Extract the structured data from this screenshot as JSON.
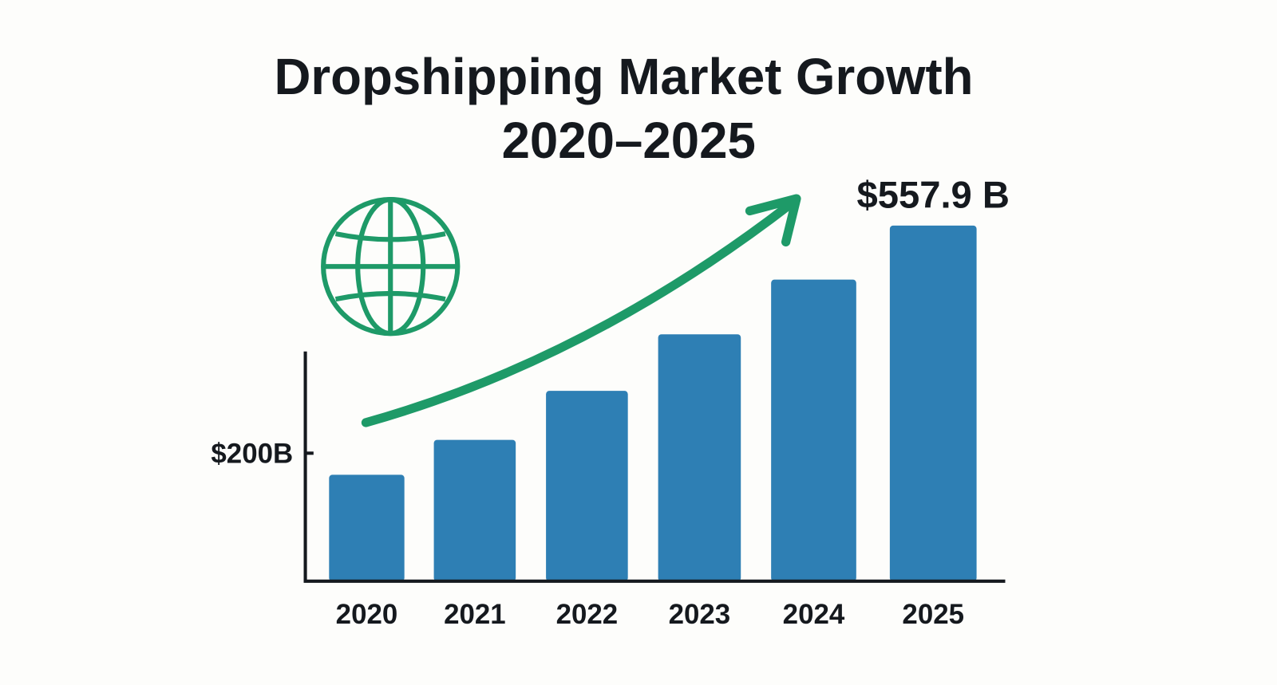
{
  "chart_data": {
    "type": "bar",
    "title": "Dropshipping Market Growth",
    "subtitle": "2020–2025",
    "categories": [
      "2020",
      "2021",
      "2022",
      "2023",
      "2024",
      "2025"
    ],
    "values": [
      166,
      221,
      298,
      387,
      473,
      557.9
    ],
    "unit": "$B",
    "yticks": [
      {
        "value": 200,
        "label": "$200B"
      }
    ],
    "data_labels": [
      {
        "category": "2025",
        "label": "$557.9 B"
      }
    ],
    "xlabel": "",
    "ylabel": "",
    "ylim": [
      0,
      557.9
    ],
    "grid": false,
    "legend": "none",
    "decorations": [
      "globe-icon",
      "trend-arrow-icon"
    ],
    "colors": {
      "bar": "#2e7fb4",
      "accent": "#1e9a68",
      "text": "#15191e",
      "background": "#fdfdfb"
    }
  }
}
